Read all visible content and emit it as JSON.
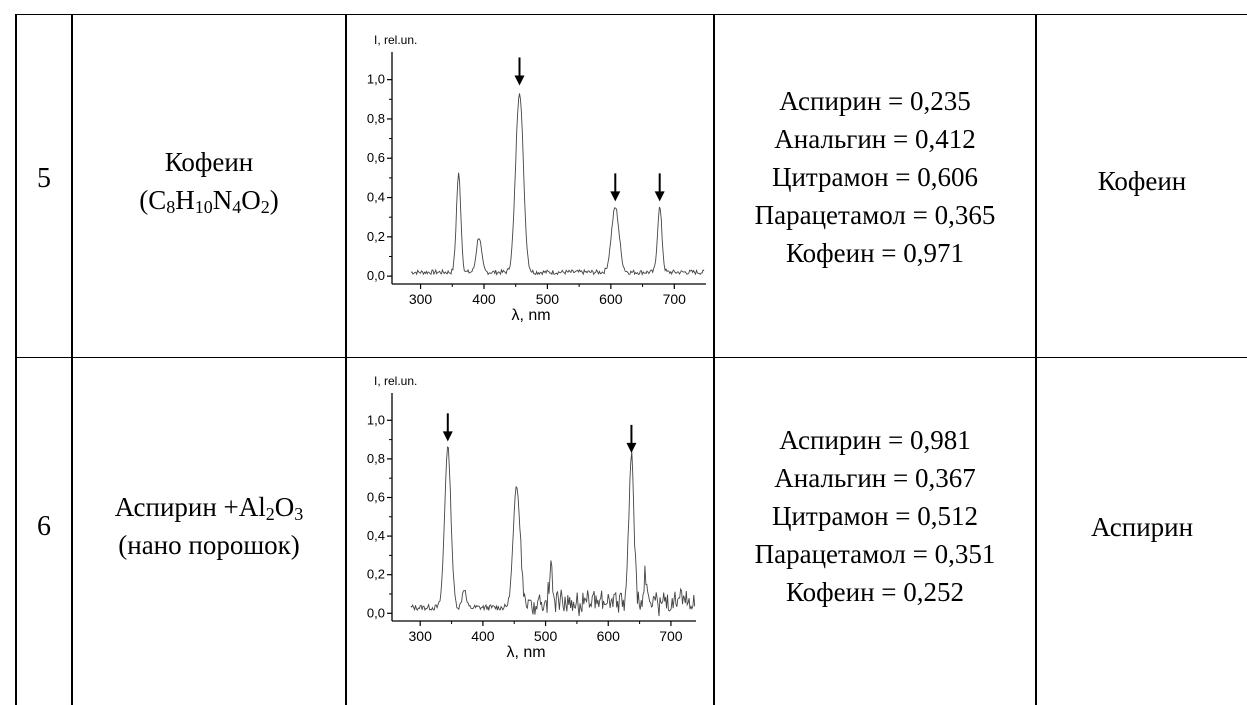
{
  "rows": [
    {
      "number": "5",
      "substance_name": "Кофеин",
      "formula": [
        {
          "t": "(C"
        },
        {
          "s": "8"
        },
        {
          "t": "H"
        },
        {
          "s": "10"
        },
        {
          "t": "N"
        },
        {
          "s": "4"
        },
        {
          "t": "O"
        },
        {
          "s": "2"
        },
        {
          "t": ")"
        }
      ],
      "matches": [
        "Аспирин = 0,235",
        "Анальгин = 0,412",
        "Цитрамон = 0,606",
        "Парацетамол = 0,365",
        "Кофеин = 0,971"
      ],
      "result": "Кофеин"
    },
    {
      "number": "6",
      "substance_name": [
        {
          "t": "Аспирин +Al"
        },
        {
          "s": "2"
        },
        {
          "t": "O"
        },
        {
          "s": "3"
        }
      ],
      "substance_note": "(нано порошок)",
      "matches": [
        "Аспирин = 0,981",
        "Анальгин = 0,367",
        "Цитрамон = 0,512",
        "Парацетамол = 0,351",
        "Кофеин = 0,252"
      ],
      "result": "Аспирин"
    }
  ],
  "chart_data": [
    {
      "type": "line",
      "ylabel": "I, rel.un.",
      "xlabel": "λ, nm",
      "xlim": [
        255,
        750
      ],
      "ylim": [
        -0.04,
        1.1
      ],
      "xticks": [
        "300",
        "400",
        "500",
        "600",
        "700"
      ],
      "yticks": [
        "0,0",
        "0,2",
        "0,4",
        "0,6",
        "0,8",
        "1,0"
      ],
      "baseline": 0.02,
      "peaks": [
        {
          "x": 360,
          "y": 0.5,
          "w": 3.5
        },
        {
          "x": 392,
          "y": 0.18,
          "w": 4
        },
        {
          "x": 456,
          "y": 0.92,
          "w": 6
        },
        {
          "x": 607,
          "y": 0.33,
          "w": 6
        },
        {
          "x": 677,
          "y": 0.33,
          "w": 3.5
        }
      ],
      "arrows": [
        456,
        607,
        677
      ],
      "noise": 0.012
    },
    {
      "type": "line",
      "ylabel": "I, rel.un.",
      "xlabel": "λ, nm",
      "xlim": [
        255,
        740
      ],
      "ylim": [
        -0.04,
        1.1
      ],
      "xticks": [
        "300",
        "400",
        "500",
        "600",
        "700"
      ],
      "yticks": [
        "0,0",
        "0,2",
        "0,4",
        "0,6",
        "0,8",
        "1,0"
      ],
      "baseline": 0.03,
      "peaks": [
        {
          "x": 344,
          "y": 0.83,
          "w": 5
        },
        {
          "x": 370,
          "y": 0.1,
          "w": 3
        },
        {
          "x": 454,
          "y": 0.63,
          "w": 5.5
        },
        {
          "x": 508,
          "y": 0.18,
          "w": 2.5
        },
        {
          "x": 637,
          "y": 0.77,
          "w": 4
        },
        {
          "x": 660,
          "y": 0.16,
          "w": 2.5
        }
      ],
      "arrows": [
        344,
        637
      ],
      "noise": 0.05,
      "noise_from": 460,
      "low_noise": 0.015
    }
  ]
}
